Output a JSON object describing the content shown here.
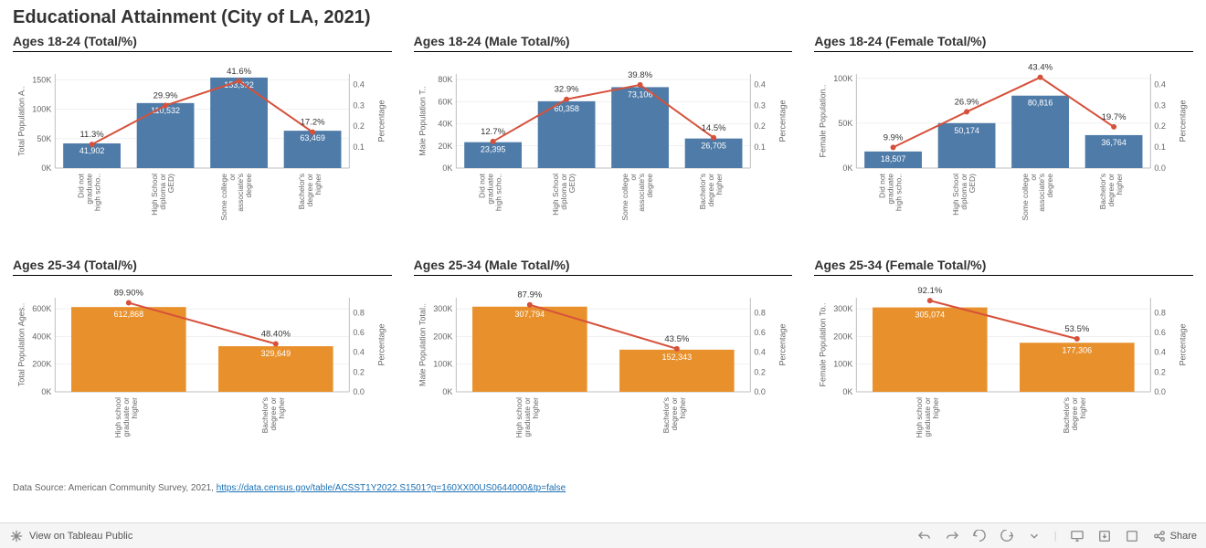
{
  "title": "Educational Attainment (City of LA, 2021)",
  "source_prefix": "Data Source: American Community Survey, 2021, ",
  "source_link_text": "https://data.census.gov/table/ACSST1Y2022.S1501?g=160XX00US0644000&tp=false",
  "toolbar": {
    "view_label": "View on Tableau Public",
    "share_label": "Share"
  },
  "global_style": {
    "bar_color_row1": "#4f7ba8",
    "bar_color_row2": "#e8912c",
    "line_color": "#d6513b",
    "marker_color": "#d6513b",
    "grid_color": "#e0e0e0",
    "axis_color": "#bfbfbf",
    "text_color": "#333333",
    "tick_color": "#666666",
    "line_width": 2,
    "marker_radius": 3
  },
  "panels": [
    {
      "id": "p1",
      "title": "Ages 18-24 (Total/%)",
      "y_axis_label": "Total Population A..",
      "y2_axis_label": "Percentage",
      "row": 1,
      "categories": [
        "Did not graduate high scho..",
        "High School diploma or GED)",
        "Some college or associate's degree",
        "Bachelor's degree or higher"
      ],
      "values": [
        41902,
        110532,
        153922,
        63469
      ],
      "percentages": [
        11.3,
        29.9,
        41.6,
        17.2
      ],
      "pct_labels": [
        "11.3%",
        "29.9%",
        "41.6%",
        "17.2%"
      ],
      "val_labels": [
        "41,902",
        "110,532",
        "153,922",
        "63,469"
      ],
      "y_max": 160000,
      "y_ticks": [
        0,
        50000,
        100000,
        150000
      ],
      "y_tick_labels": [
        "0K",
        "50K",
        "100K",
        "150K"
      ],
      "y2_max": 0.45,
      "y2_ticks": [
        0.1,
        0.2,
        0.3,
        0.4
      ],
      "y2_tick_labels": [
        "0.1",
        "0.2",
        "0.3",
        "0.4"
      ]
    },
    {
      "id": "p2",
      "title": "Ages 18-24 (Male Total/%)",
      "y_axis_label": "Male Population T..",
      "y2_axis_label": "Percentage",
      "row": 1,
      "categories": [
        "Did not graduate high scho..",
        "High School diploma or GED)",
        "Some college or associate's degree",
        "Bachelor's degree or higher"
      ],
      "values": [
        23395,
        60358,
        73106,
        26705
      ],
      "percentages": [
        12.7,
        32.9,
        39.8,
        14.5
      ],
      "pct_labels": [
        "12.7%",
        "32.9%",
        "39.8%",
        "14.5%"
      ],
      "val_labels": [
        "23,395",
        "60,358",
        "73,106",
        "26,705"
      ],
      "y_max": 85000,
      "y_ticks": [
        0,
        20000,
        40000,
        60000,
        80000
      ],
      "y_tick_labels": [
        "0K",
        "20K",
        "40K",
        "60K",
        "80K"
      ],
      "y2_max": 0.45,
      "y2_ticks": [
        0.1,
        0.2,
        0.3,
        0.4
      ],
      "y2_tick_labels": [
        "0.1",
        "0.2",
        "0.3",
        "0.4"
      ]
    },
    {
      "id": "p3",
      "title": "Ages 18-24 (Female Total/%)",
      "y_axis_label": "Female Population..",
      "y2_axis_label": "Percentage",
      "row": 1,
      "categories": [
        "Did not graduate high scho..",
        "High School diploma or GED)",
        "Some college or associate's degree",
        "Bachelor's degree or higher"
      ],
      "values": [
        18507,
        50174,
        80816,
        36764
      ],
      "percentages": [
        9.9,
        26.9,
        43.4,
        19.7
      ],
      "pct_labels": [
        "9.9%",
        "26.9%",
        "43.4%",
        "19.7%"
      ],
      "val_labels": [
        "18,507",
        "50,174",
        "80,816",
        "36,764"
      ],
      "y_max": 105000,
      "y_ticks": [
        0,
        50000,
        100000
      ],
      "y_tick_labels": [
        "0K",
        "50K",
        "100K"
      ],
      "y2_max": 0.45,
      "y2_ticks": [
        0.0,
        0.1,
        0.2,
        0.3,
        0.4
      ],
      "y2_tick_labels": [
        "0.0",
        "0.1",
        "0.2",
        "0.3",
        "0.4"
      ]
    },
    {
      "id": "p4",
      "title": "Ages 25-34 (Total/%)",
      "y_axis_label": "Total Population Ages..",
      "y2_axis_label": "Percentage",
      "row": 2,
      "categories": [
        "High school graduate or higher",
        "Bachelor's degree or higher"
      ],
      "values": [
        612868,
        329649
      ],
      "percentages": [
        89.9,
        48.4
      ],
      "pct_labels": [
        "89.90%",
        "48.40%"
      ],
      "val_labels": [
        "612,868",
        "329,649"
      ],
      "y_max": 680000,
      "y_ticks": [
        0,
        200000,
        400000,
        600000
      ],
      "y_tick_labels": [
        "0K",
        "200K",
        "400K",
        "600K"
      ],
      "y2_max": 0.95,
      "y2_ticks": [
        0.0,
        0.2,
        0.4,
        0.6,
        0.8
      ],
      "y2_tick_labels": [
        "0.0",
        "0.2",
        "0.4",
        "0.6",
        "0.8"
      ]
    },
    {
      "id": "p5",
      "title": "Ages 25-34 (Male Total/%)",
      "y_axis_label": "Male Population Total..",
      "y2_axis_label": "Percentage",
      "row": 2,
      "categories": [
        "High school graduate or higher",
        "Bachelor's degree or higher"
      ],
      "values": [
        307794,
        152343
      ],
      "percentages": [
        87.9,
        43.5
      ],
      "pct_labels": [
        "87.9%",
        "43.5%"
      ],
      "val_labels": [
        "307,794",
        "152,343"
      ],
      "y_max": 340000,
      "y_ticks": [
        0,
        100000,
        200000,
        300000
      ],
      "y_tick_labels": [
        "0K",
        "100K",
        "200K",
        "300K"
      ],
      "y2_max": 0.95,
      "y2_ticks": [
        0.0,
        0.2,
        0.4,
        0.6,
        0.8
      ],
      "y2_tick_labels": [
        "0.0",
        "0.2",
        "0.4",
        "0.6",
        "0.8"
      ]
    },
    {
      "id": "p6",
      "title": "Ages 25-34 (Female Total/%)",
      "y_axis_label": "Female Population To..",
      "y2_axis_label": "Percentage",
      "row": 2,
      "categories": [
        "High school graduate or higher",
        "Bachelor's degree or higher"
      ],
      "values": [
        305074,
        177306
      ],
      "percentages": [
        92.1,
        53.5
      ],
      "pct_labels": [
        "92.1%",
        "53.5%"
      ],
      "val_labels": [
        "305,074",
        "177,306"
      ],
      "y_max": 340000,
      "y_ticks": [
        0,
        100000,
        200000,
        300000
      ],
      "y_tick_labels": [
        "0K",
        "100K",
        "200K",
        "300K"
      ],
      "y2_max": 0.95,
      "y2_ticks": [
        0.0,
        0.2,
        0.4,
        0.6,
        0.8
      ],
      "y2_tick_labels": [
        "0.0",
        "0.2",
        "0.4",
        "0.6",
        "0.8"
      ]
    }
  ]
}
